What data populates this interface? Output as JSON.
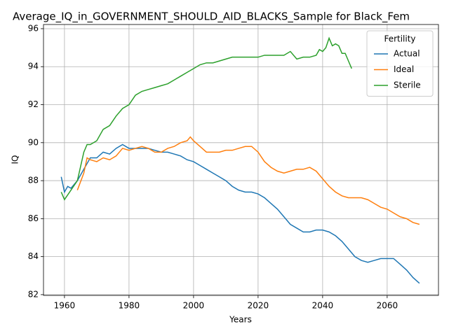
{
  "chart_data": {
    "type": "line",
    "title": "Average_IQ_in_GOVERNMENT_SHOULD_AID_BLACKS_Sample for Black_Fem",
    "xlabel": "Years",
    "ylabel": "IQ",
    "xlim": [
      1953.5,
      2075.9
    ],
    "ylim": [
      81.96,
      96.22
    ],
    "xticks": [
      1960,
      1980,
      2000,
      2020,
      2040,
      2060
    ],
    "yticks": [
      82,
      84,
      86,
      88,
      90,
      92,
      94,
      96
    ],
    "grid": true,
    "legend_title": "Fertility",
    "legend_loc": "upper right",
    "series": [
      {
        "name": "Actual",
        "color": "#1f77b4",
        "x": [
          1959,
          1960,
          1961,
          1962,
          1963,
          1964,
          1966,
          1968,
          1970,
          1972,
          1974,
          1976,
          1978,
          1980,
          1982,
          1984,
          1986,
          1988,
          1990,
          1992,
          1994,
          1996,
          1998,
          2000,
          2002,
          2004,
          2006,
          2008,
          2010,
          2012,
          2014,
          2016,
          2018,
          2020,
          2022,
          2024,
          2026,
          2028,
          2030,
          2032,
          2034,
          2036,
          2038,
          2040,
          2042,
          2044,
          2046,
          2048,
          2050,
          2052,
          2054,
          2056,
          2058,
          2060,
          2062,
          2064,
          2066,
          2068,
          2070
        ],
        "values": [
          88.2,
          87.4,
          87.7,
          87.6,
          87.8,
          88.0,
          88.6,
          89.2,
          89.2,
          89.5,
          89.4,
          89.7,
          89.9,
          89.7,
          89.7,
          89.7,
          89.7,
          89.6,
          89.5,
          89.5,
          89.4,
          89.3,
          89.1,
          89.0,
          88.8,
          88.6,
          88.4,
          88.2,
          88.0,
          87.7,
          87.5,
          87.4,
          87.4,
          87.3,
          87.1,
          86.8,
          86.5,
          86.1,
          85.7,
          85.5,
          85.3,
          85.3,
          85.4,
          85.4,
          85.3,
          85.1,
          84.8,
          84.4,
          84.0,
          83.8,
          83.7,
          83.8,
          83.9,
          83.9,
          83.9,
          83.6,
          83.3,
          82.9,
          82.6
        ]
      },
      {
        "name": "Ideal",
        "color": "#ff7f0e",
        "x": [
          1964,
          1966,
          1967,
          1968,
          1970,
          1972,
          1974,
          1976,
          1978,
          1980,
          1982,
          1984,
          1986,
          1988,
          1990,
          1992,
          1994,
          1996,
          1998,
          1999,
          2000,
          2002,
          2004,
          2006,
          2008,
          2010,
          2012,
          2014,
          2016,
          2018,
          2020,
          2022,
          2024,
          2026,
          2028,
          2030,
          2032,
          2034,
          2036,
          2038,
          2040,
          2042,
          2044,
          2046,
          2048,
          2050,
          2052,
          2054,
          2056,
          2058,
          2060,
          2062,
          2064,
          2066,
          2068,
          2070
        ],
        "values": [
          87.5,
          88.4,
          89.2,
          89.1,
          89.0,
          89.2,
          89.1,
          89.3,
          89.7,
          89.6,
          89.7,
          89.8,
          89.7,
          89.5,
          89.5,
          89.7,
          89.8,
          90.0,
          90.1,
          90.3,
          90.1,
          89.8,
          89.5,
          89.5,
          89.5,
          89.6,
          89.6,
          89.7,
          89.8,
          89.8,
          89.5,
          89.0,
          88.7,
          88.5,
          88.4,
          88.5,
          88.6,
          88.6,
          88.7,
          88.5,
          88.1,
          87.7,
          87.4,
          87.2,
          87.1,
          87.1,
          87.1,
          87.0,
          86.8,
          86.6,
          86.5,
          86.3,
          86.1,
          86.0,
          85.8,
          85.7
        ]
      },
      {
        "name": "Sterile",
        "color": "#2ca02c",
        "x": [
          1959,
          1960,
          1962,
          1964,
          1966,
          1967,
          1968,
          1970,
          1972,
          1974,
          1976,
          1978,
          1980,
          1982,
          1984,
          1986,
          1988,
          1990,
          1992,
          1994,
          1996,
          1998,
          2000,
          2002,
          2004,
          2006,
          2008,
          2010,
          2012,
          2014,
          2016,
          2018,
          2020,
          2022,
          2024,
          2026,
          2028,
          2030,
          2032,
          2034,
          2036,
          2038,
          2039,
          2040,
          2041,
          2042,
          2043,
          2044,
          2045,
          2046,
          2047,
          2048,
          2049
        ],
        "values": [
          87.4,
          87.0,
          87.5,
          88.0,
          89.5,
          89.9,
          89.9,
          90.1,
          90.7,
          90.9,
          91.4,
          91.8,
          92.0,
          92.5,
          92.7,
          92.8,
          92.9,
          93.0,
          93.1,
          93.3,
          93.5,
          93.7,
          93.9,
          94.1,
          94.2,
          94.2,
          94.3,
          94.4,
          94.5,
          94.5,
          94.5,
          94.5,
          94.5,
          94.6,
          94.6,
          94.6,
          94.6,
          94.8,
          94.4,
          94.5,
          94.5,
          94.6,
          94.9,
          94.8,
          95.0,
          95.5,
          95.1,
          95.2,
          95.1,
          94.7,
          94.7,
          94.3,
          93.9
        ]
      }
    ]
  }
}
